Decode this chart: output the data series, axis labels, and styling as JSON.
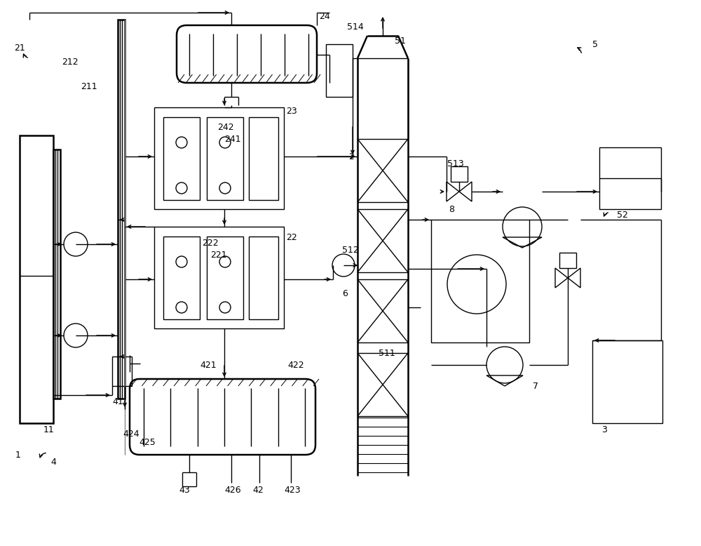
{
  "bg_color": "#ffffff",
  "line_color": "#000000",
  "lw": 1.0,
  "lw2": 1.8,
  "fig_width": 10.0,
  "fig_height": 7.78
}
